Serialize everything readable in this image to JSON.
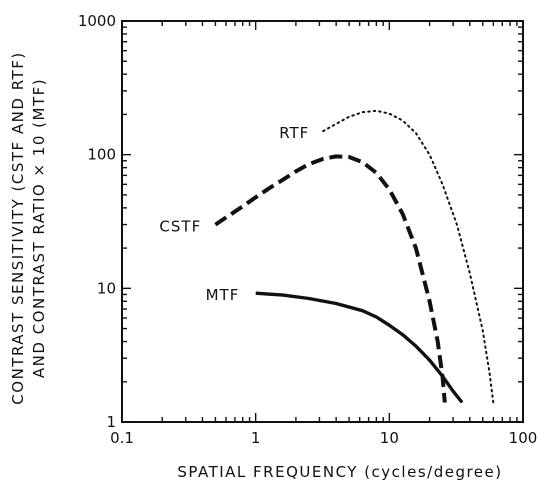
{
  "chart_data": {
    "type": "line",
    "title": "",
    "xlabel": "SPATIAL FREQUENCY (cycles/degree)",
    "ylabel_line1": "CONTRAST SENSITIVITY (CSTF AND RTF)",
    "ylabel_line2": "AND CONTRAST RATIO × 10 (MTF)",
    "x_scale": "log",
    "y_scale": "log",
    "xlim": [
      0.1,
      100
    ],
    "ylim": [
      1,
      1000
    ],
    "x_ticks": [
      {
        "value": 0.1,
        "label": "0.1"
      },
      {
        "value": 1,
        "label": "1"
      },
      {
        "value": 10,
        "label": "10"
      },
      {
        "value": 100,
        "label": "100"
      }
    ],
    "y_ticks": [
      {
        "value": 1,
        "label": "1"
      },
      {
        "value": 10,
        "label": "10"
      },
      {
        "value": 100,
        "label": "100"
      },
      {
        "value": 1000,
        "label": "1000"
      }
    ],
    "grid": false,
    "series": [
      {
        "name": "RTF",
        "style": "dotted",
        "points": [
          [
            3.2,
            150
          ],
          [
            4,
            170
          ],
          [
            5,
            192
          ],
          [
            6.3,
            208
          ],
          [
            8,
            213
          ],
          [
            10,
            203
          ],
          [
            12.6,
            180
          ],
          [
            15.8,
            145
          ],
          [
            20,
            100
          ],
          [
            25,
            60
          ],
          [
            32,
            30
          ],
          [
            40,
            13
          ],
          [
            50,
            4.8
          ],
          [
            56,
            2.4
          ],
          [
            60,
            1.4
          ]
        ]
      },
      {
        "name": "CSTF",
        "style": "dashed",
        "points": [
          [
            0.5,
            30
          ],
          [
            0.63,
            35
          ],
          [
            0.8,
            41
          ],
          [
            1,
            48
          ],
          [
            1.26,
            56
          ],
          [
            1.6,
            65
          ],
          [
            2,
            75
          ],
          [
            2.5,
            85
          ],
          [
            3.2,
            93
          ],
          [
            4,
            97
          ],
          [
            5,
            96
          ],
          [
            6.3,
            88
          ],
          [
            8,
            73
          ],
          [
            10,
            55
          ],
          [
            12.6,
            36
          ],
          [
            15.8,
            20
          ],
          [
            20,
            8
          ],
          [
            23,
            4
          ],
          [
            25,
            2.2
          ],
          [
            26,
            1.4
          ]
        ]
      },
      {
        "name": "MTF",
        "style": "solid",
        "points": [
          [
            1,
            9.2
          ],
          [
            1.6,
            8.9
          ],
          [
            2.5,
            8.4
          ],
          [
            4,
            7.7
          ],
          [
            6.3,
            6.8
          ],
          [
            8,
            6.1
          ],
          [
            10,
            5.3
          ],
          [
            12.6,
            4.5
          ],
          [
            15.8,
            3.7
          ],
          [
            20,
            2.9
          ],
          [
            25,
            2.2
          ],
          [
            30,
            1.7
          ],
          [
            35,
            1.4
          ]
        ]
      }
    ]
  }
}
